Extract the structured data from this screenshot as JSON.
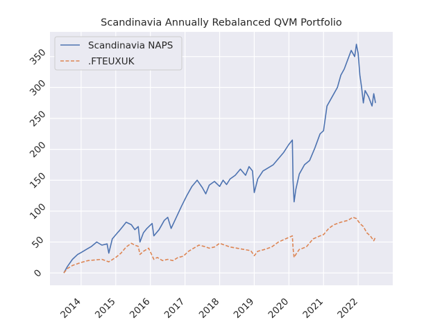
{
  "chart_data": {
    "type": "line",
    "title": "Scandinavia Annually Rebalanced QVM Portfolio",
    "xlabel": "",
    "ylabel": "",
    "xlim": [
      2013.1,
      2023.0
    ],
    "ylim": [
      -20,
      390
    ],
    "xticks": [
      2014,
      2015,
      2016,
      2017,
      2018,
      2019,
      2020,
      2021,
      2022
    ],
    "xtick_labels": [
      "2014",
      "2015",
      "2016",
      "2017",
      "2018",
      "2019",
      "2020",
      "2021",
      "2022"
    ],
    "yticks": [
      0,
      50,
      100,
      150,
      200,
      250,
      300,
      350
    ],
    "ytick_labels": [
      "0",
      "50",
      "100",
      "150",
      "200",
      "250",
      "300",
      "350"
    ],
    "grid": true,
    "legend_position": "top-left",
    "series": [
      {
        "name": "Scandinavia NAPS",
        "color": "#4c72b0",
        "style": "solid",
        "x": [
          2013.5,
          2013.6,
          2013.75,
          2013.9,
          2014.0,
          2014.15,
          2014.3,
          2014.45,
          2014.6,
          2014.75,
          2014.8,
          2014.9,
          2015.05,
          2015.1,
          2015.2,
          2015.3,
          2015.45,
          2015.55,
          2015.65,
          2015.7,
          2015.8,
          2015.9,
          2016.05,
          2016.1,
          2016.25,
          2016.4,
          2016.5,
          2016.6,
          2016.75,
          2016.9,
          2017.05,
          2017.2,
          2017.35,
          2017.5,
          2017.6,
          2017.7,
          2017.85,
          2018.0,
          2018.1,
          2018.2,
          2018.3,
          2018.45,
          2018.6,
          2018.75,
          2018.85,
          2018.95,
          2019.0,
          2019.1,
          2019.25,
          2019.4,
          2019.55,
          2019.7,
          2019.85,
          2020.0,
          2020.1,
          2020.12,
          2020.15,
          2020.2,
          2020.3,
          2020.45,
          2020.6,
          2020.75,
          2020.9,
          2021.0,
          2021.1,
          2021.25,
          2021.4,
          2021.5,
          2021.6,
          2021.7,
          2021.8,
          2021.9,
          2021.95,
          2022.0,
          2022.05,
          2022.1,
          2022.15,
          2022.2,
          2022.3,
          2022.4,
          2022.45,
          2022.5
        ],
        "values": [
          0,
          10,
          22,
          30,
          33,
          38,
          43,
          50,
          45,
          47,
          32,
          55,
          65,
          68,
          75,
          82,
          78,
          70,
          75,
          50,
          65,
          72,
          80,
          60,
          70,
          85,
          90,
          72,
          90,
          108,
          125,
          140,
          150,
          138,
          128,
          142,
          148,
          140,
          150,
          143,
          152,
          158,
          168,
          158,
          172,
          165,
          130,
          152,
          165,
          170,
          175,
          185,
          195,
          208,
          215,
          150,
          115,
          135,
          160,
          175,
          182,
          202,
          225,
          230,
          270,
          285,
          300,
          320,
          330,
          345,
          360,
          350,
          370,
          355,
          320,
          300,
          275,
          295,
          285,
          270,
          290,
          275
        ]
      },
      {
        "name": ".FTEUXUK",
        "color": "#dd8452",
        "style": "dashed",
        "x": [
          2013.5,
          2013.6,
          2013.75,
          2013.9,
          2014.0,
          2014.2,
          2014.4,
          2014.6,
          2014.8,
          2015.0,
          2015.15,
          2015.3,
          2015.45,
          2015.55,
          2015.65,
          2015.7,
          2015.8,
          2015.95,
          2016.1,
          2016.2,
          2016.35,
          2016.5,
          2016.65,
          2016.8,
          2016.95,
          2017.1,
          2017.25,
          2017.4,
          2017.55,
          2017.7,
          2017.85,
          2018.0,
          2018.15,
          2018.3,
          2018.5,
          2018.7,
          2018.9,
          2019.0,
          2019.1,
          2019.3,
          2019.5,
          2019.7,
          2019.9,
          2020.1,
          2020.12,
          2020.15,
          2020.2,
          2020.3,
          2020.5,
          2020.7,
          2020.9,
          2021.0,
          2021.15,
          2021.3,
          2021.5,
          2021.7,
          2021.85,
          2021.95,
          2022.05,
          2022.15,
          2022.25,
          2022.35,
          2022.45,
          2022.5
        ],
        "values": [
          0,
          7,
          12,
          15,
          17,
          20,
          21,
          22,
          18,
          25,
          32,
          42,
          48,
          45,
          43,
          30,
          35,
          40,
          22,
          25,
          20,
          22,
          20,
          25,
          27,
          35,
          40,
          45,
          43,
          40,
          42,
          48,
          45,
          42,
          40,
          38,
          36,
          28,
          35,
          38,
          42,
          50,
          55,
          60,
          40,
          25,
          30,
          38,
          42,
          55,
          60,
          62,
          72,
          78,
          82,
          85,
          90,
          88,
          80,
          75,
          65,
          60,
          52,
          58
        ]
      }
    ]
  }
}
